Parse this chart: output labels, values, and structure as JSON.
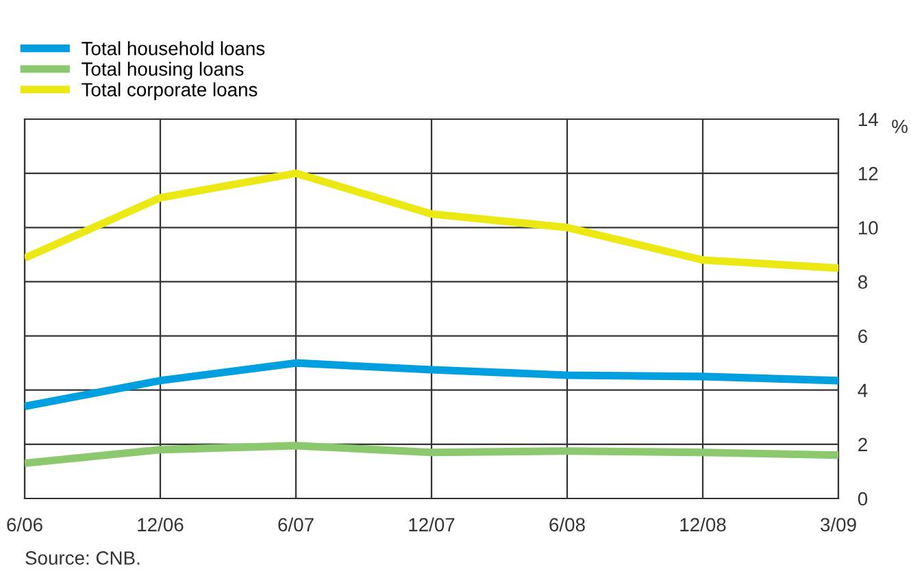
{
  "chart_data": {
    "type": "line",
    "ylabel": "%",
    "categories": [
      "6/06",
      "12/06",
      "6/07",
      "12/07",
      "6/08",
      "12/08",
      "3/09"
    ],
    "series": [
      {
        "name": "Total household loans",
        "color": "#009fdf",
        "values": [
          3.4,
          4.35,
          5.0,
          4.75,
          4.55,
          4.5,
          4.35
        ]
      },
      {
        "name": "Total housing loans",
        "color": "#8cc96e",
        "values": [
          1.3,
          1.8,
          1.95,
          1.7,
          1.75,
          1.7,
          1.6
        ]
      },
      {
        "name": "Total corporate loans",
        "color": "#ece814",
        "values": [
          8.87,
          11.1,
          12.0,
          10.5,
          10.0,
          8.8,
          8.5
        ]
      }
    ],
    "ylim": [
      0,
      14
    ],
    "yticks": [
      0,
      2,
      4,
      6,
      8,
      10,
      12,
      14
    ],
    "grid": true,
    "legend": "top left",
    "annotations": [
      "Source: CNB."
    ]
  }
}
